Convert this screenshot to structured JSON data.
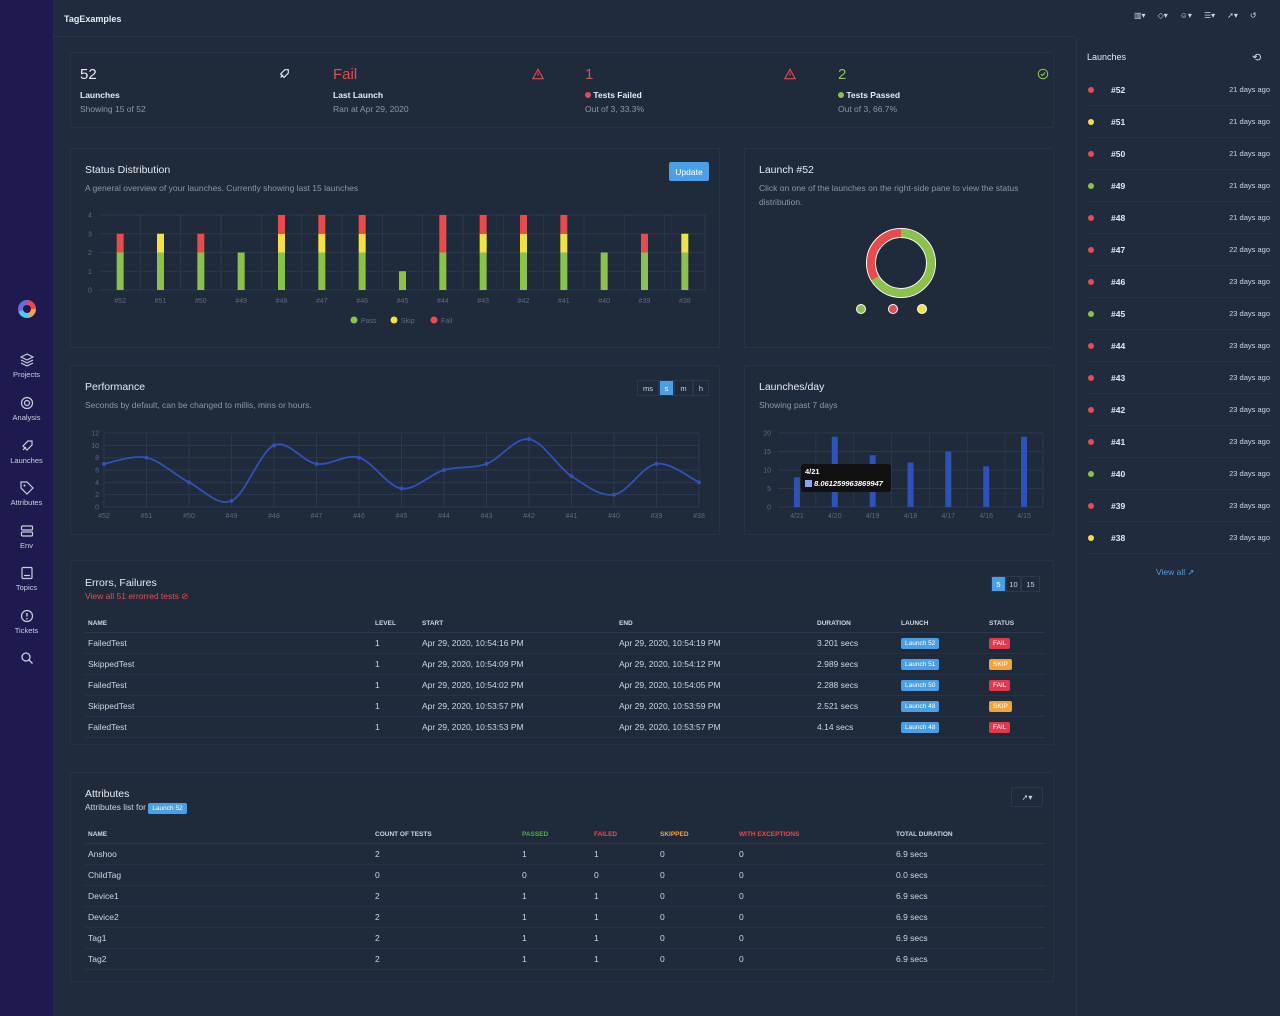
{
  "app": {
    "title": "TagExamples"
  },
  "sidebar": {
    "items": [
      {
        "label": "Projects",
        "icon": "layers-icon"
      },
      {
        "label": "Analysis",
        "icon": "target-icon"
      },
      {
        "label": "Launches",
        "icon": "rocket-icon"
      },
      {
        "label": "Attributes",
        "icon": "tag-icon"
      },
      {
        "label": "Env",
        "icon": "server-icon"
      },
      {
        "label": "Topics",
        "icon": "book-icon"
      },
      {
        "label": "Tickets",
        "icon": "info-icon"
      }
    ],
    "search_icon": "search-icon"
  },
  "topbar": {
    "icons": [
      "layout-icon",
      "tag-icon",
      "user-icon",
      "list-icon",
      "rocket-icon",
      "history-icon"
    ]
  },
  "stats": [
    {
      "value": "52",
      "label": "Launches",
      "sub": "Showing 15 of 52",
      "icon": "rocket-icon",
      "color": "#e6ebf2"
    },
    {
      "value": "Fail",
      "label": "Last Launch",
      "sub": "Ran at Apr 29, 2020",
      "icon": "warning-icon",
      "color": "#e84b4b"
    },
    {
      "value": "1",
      "label": "Tests Failed",
      "sub": "Out of 3, 33.3%",
      "icon": "warning-icon",
      "color": "#e84b4b"
    },
    {
      "value": "2",
      "label": "Tests Passed",
      "sub": "Out of 3, 66.7%",
      "icon": "check-circle-icon",
      "color": "#8bc34a"
    }
  ],
  "status": {
    "title": "Status Distribution",
    "subtitle": "A general overview of your launches. Currently showing last 15 launches",
    "update_label": "Update"
  },
  "launch_detail": {
    "title": "Launch #52",
    "subtitle": "Click on one of the launches on the right-side pane to view the status distribution."
  },
  "performance": {
    "title": "Performance",
    "subtitle": "Seconds by default, can be changed to millis, mins or hours.",
    "units": [
      "ms",
      "s",
      "m",
      "h"
    ],
    "selected": "s"
  },
  "launches_day": {
    "title": "Launches/day",
    "subtitle": "Showing past 7 days",
    "tooltip_date": "4/21",
    "tooltip_value": "8.061259963869947"
  },
  "errors": {
    "title": "Errors, Failures",
    "link": "View all 51 errorred tests",
    "page_sizes": [
      "5",
      "10",
      "15"
    ],
    "selected": "5",
    "headers": [
      "NAME",
      "LEVEL",
      "START",
      "END",
      "DURATION",
      "LAUNCH",
      "STATUS"
    ],
    "rows": [
      {
        "name": "FailedTest",
        "level": "1",
        "start": "Apr 29, 2020, 10:54:16 PM",
        "end": "Apr 29, 2020, 10:54:19 PM",
        "duration": "3.201 secs",
        "launch": "Launch 52",
        "status": "FAIL"
      },
      {
        "name": "SkippedTest",
        "level": "1",
        "start": "Apr 29, 2020, 10:54:09 PM",
        "end": "Apr 29, 2020, 10:54:12 PM",
        "duration": "2.989 secs",
        "launch": "Launch 51",
        "status": "SKIP"
      },
      {
        "name": "FailedTest",
        "level": "1",
        "start": "Apr 29, 2020, 10:54:02 PM",
        "end": "Apr 29, 2020, 10:54:05 PM",
        "duration": "2.288 secs",
        "launch": "Launch 50",
        "status": "FAIL"
      },
      {
        "name": "SkippedTest",
        "level": "1",
        "start": "Apr 29, 2020, 10:53:57 PM",
        "end": "Apr 29, 2020, 10:53:59 PM",
        "duration": "2.521 secs",
        "launch": "Launch 48",
        "status": "SKIP"
      },
      {
        "name": "FailedTest",
        "level": "1",
        "start": "Apr 29, 2020, 10:53:53 PM",
        "end": "Apr 29, 2020, 10:53:57 PM",
        "duration": "4.14 secs",
        "launch": "Launch 48",
        "status": "FAIL"
      }
    ]
  },
  "attributes": {
    "title": "Attributes",
    "subtitle": "Attributes list for",
    "launch_badge": "Launch 52",
    "headers": [
      "NAME",
      "COUNT OF TESTS",
      "PASSED",
      "FAILED",
      "SKIPPED",
      "WITH EXCEPTIONS",
      "TOTAL DURATION"
    ],
    "header_colors": [
      "#cfd6e2",
      "#cfd6e2",
      "#4caf50",
      "#e84b4b",
      "#f2a33a",
      "#e84b4b",
      "#cfd6e2"
    ],
    "rows": [
      [
        "Anshoo",
        "2",
        "1",
        "1",
        "0",
        "0",
        "6.9 secs"
      ],
      [
        "ChildTag",
        "0",
        "0",
        "0",
        "0",
        "0",
        "0.0 secs"
      ],
      [
        "Device1",
        "2",
        "1",
        "1",
        "0",
        "0",
        "6.9 secs"
      ],
      [
        "Device2",
        "2",
        "1",
        "1",
        "0",
        "0",
        "6.9 secs"
      ],
      [
        "Tag1",
        "2",
        "1",
        "1",
        "0",
        "0",
        "6.9 secs"
      ],
      [
        "Tag2",
        "2",
        "1",
        "1",
        "0",
        "0",
        "6.9 secs"
      ]
    ]
  },
  "right_panel": {
    "title": "Launches",
    "view_all": "View all",
    "items": [
      {
        "id": "#52",
        "ago": "21 days ago",
        "color": "#e84b4b"
      },
      {
        "id": "#51",
        "ago": "21 days ago",
        "color": "#f5e043"
      },
      {
        "id": "#50",
        "ago": "21 days ago",
        "color": "#e84b4b"
      },
      {
        "id": "#49",
        "ago": "21 days ago",
        "color": "#8bc34a"
      },
      {
        "id": "#48",
        "ago": "21 days ago",
        "color": "#e84b4b"
      },
      {
        "id": "#47",
        "ago": "22 days ago",
        "color": "#e84b4b"
      },
      {
        "id": "#46",
        "ago": "23 days ago",
        "color": "#e84b4b"
      },
      {
        "id": "#45",
        "ago": "23 days ago",
        "color": "#8bc34a"
      },
      {
        "id": "#44",
        "ago": "23 days ago",
        "color": "#e84b4b"
      },
      {
        "id": "#43",
        "ago": "23 days ago",
        "color": "#e84b4b"
      },
      {
        "id": "#42",
        "ago": "23 days ago",
        "color": "#e84b4b"
      },
      {
        "id": "#41",
        "ago": "23 days ago",
        "color": "#e84b4b"
      },
      {
        "id": "#40",
        "ago": "23 days ago",
        "color": "#8bc34a"
      },
      {
        "id": "#39",
        "ago": "23 days ago",
        "color": "#e84b4b"
      },
      {
        "id": "#38",
        "ago": "23 days ago",
        "color": "#f5e043"
      }
    ]
  },
  "chart_data": [
    {
      "type": "bar",
      "stacked": true,
      "categories": [
        "#52",
        "#51",
        "#50",
        "#49",
        "#48",
        "#47",
        "#46",
        "#45",
        "#44",
        "#43",
        "#42",
        "#41",
        "#40",
        "#39",
        "#38"
      ],
      "series": [
        {
          "name": "Pass",
          "color": "#8bc34a",
          "values": [
            2,
            2,
            2,
            2,
            2,
            2,
            2,
            1,
            2,
            2,
            2,
            2,
            2,
            2,
            2
          ]
        },
        {
          "name": "Skip",
          "color": "#f5e043",
          "values": [
            0,
            1,
            0,
            0,
            1,
            1,
            1,
            0,
            0,
            1,
            1,
            1,
            0,
            0,
            1
          ]
        },
        {
          "name": "Fail",
          "color": "#e84b4b",
          "values": [
            1,
            0,
            1,
            0,
            1,
            1,
            1,
            0,
            2,
            1,
            1,
            1,
            0,
            1,
            0
          ]
        }
      ],
      "ylim": [
        0,
        4
      ],
      "yticks": [
        0,
        1,
        2,
        3,
        4
      ],
      "legend": "bottom"
    },
    {
      "type": "pie",
      "donut": true,
      "labels": [
        "Pass",
        "Fail",
        "Skip"
      ],
      "values": [
        2,
        1,
        0
      ],
      "colors": [
        "#8bc34a",
        "#e84b4b",
        "#f5e043"
      ]
    },
    {
      "type": "line",
      "categories": [
        "#52",
        "#51",
        "#50",
        "#49",
        "#48",
        "#47",
        "#46",
        "#45",
        "#44",
        "#43",
        "#42",
        "#41",
        "#40",
        "#39",
        "#38"
      ],
      "values": [
        7,
        8,
        4,
        1,
        10,
        7,
        8,
        3,
        6,
        7,
        11,
        5,
        2,
        7,
        4
      ],
      "ylim": [
        0,
        12
      ],
      "yticks": [
        0,
        2,
        4,
        6,
        8,
        10,
        12
      ],
      "color": "#2f52b8"
    },
    {
      "type": "bar",
      "categories": [
        "4/21",
        "4/20",
        "4/19",
        "4/18",
        "4/17",
        "4/16",
        "4/15"
      ],
      "values": [
        8,
        19,
        14,
        12,
        15,
        11,
        19
      ],
      "ylim": [
        0,
        20
      ],
      "yticks": [
        0,
        5,
        10,
        15,
        20
      ],
      "color": "#2f52b8"
    }
  ]
}
